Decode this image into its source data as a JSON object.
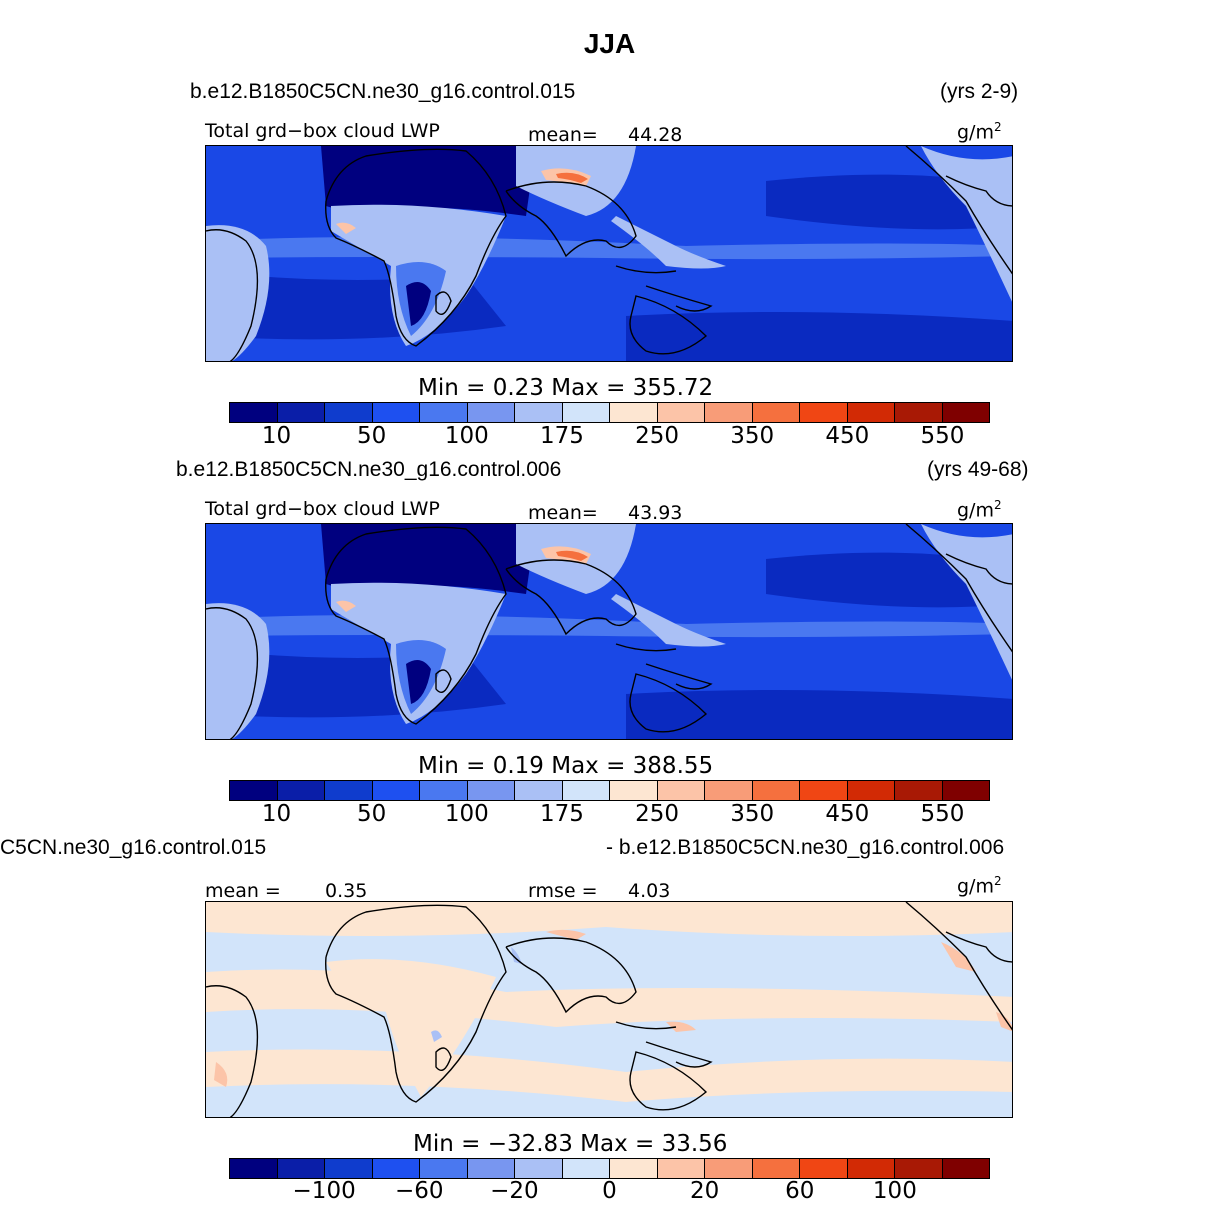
{
  "title": "JJA",
  "panels": [
    {
      "case": "b.e12.B1850C5CN.ne30_g16.control.015",
      "years": "(yrs 2-9)",
      "left_label": "Total grd−box cloud LWP",
      "stat_label": "mean=",
      "stat_value": "44.28",
      "units_base": "g/m",
      "units_exp": "2",
      "minmax": "Min =     0.23  Max  =  355.72",
      "colorbar_ticks": [
        "10",
        "50",
        "100",
        "175",
        "250",
        "350",
        "450",
        "550"
      ]
    },
    {
      "case": "b.e12.B1850C5CN.ne30_g16.control.006",
      "years": "(yrs 49-68)",
      "left_label": "Total grd−box cloud LWP",
      "stat_label": "mean=",
      "stat_value": "43.93",
      "units_base": "g/m",
      "units_exp": "2",
      "minmax": "Min =     0.19  Max  =  388.55",
      "colorbar_ticks": [
        "10",
        "50",
        "100",
        "175",
        "250",
        "350",
        "450",
        "550"
      ]
    },
    {
      "case_left": "C5CN.ne30_g16.control.015",
      "case_right": "- b.e12.B1850C5CN.ne30_g16.control.006",
      "mean_label": "mean =",
      "mean_value": "0.35",
      "rmse_label": "rmse =",
      "rmse_value": "4.03",
      "units_base": "g/m",
      "units_exp": "2",
      "minmax": "Min = −32.83  Max  =   33.56",
      "colorbar_ticks": [
        "−100",
        "−60",
        "−20",
        "0",
        "20",
        "60",
        "100"
      ]
    }
  ],
  "colorbar_colors": [
    "#00007f",
    "#0a1ea8",
    "#0f3ccd",
    "#1e50f0",
    "#4a78f0",
    "#7896f0",
    "#aac0f5",
    "#d2e4fa",
    "#fde6d2",
    "#fcc4a8",
    "#f89c78",
    "#f5703e",
    "#f04614",
    "#d22a05",
    "#a81905",
    "#7f0000"
  ],
  "map_colors": {
    "ocean": "#1a48e6",
    "ocean_dark": "#0a2ac0",
    "very_dark": "#00007f",
    "mid": "#4a78f0",
    "light": "#aac0f5",
    "peak": "#fcc4a8",
    "peak_hot": "#f5703e",
    "diff_neg": "#d2e4fa",
    "diff_pos": "#fde6d2",
    "diff_pos2": "#fcc4a8",
    "diff_neg2": "#aac0f5"
  }
}
